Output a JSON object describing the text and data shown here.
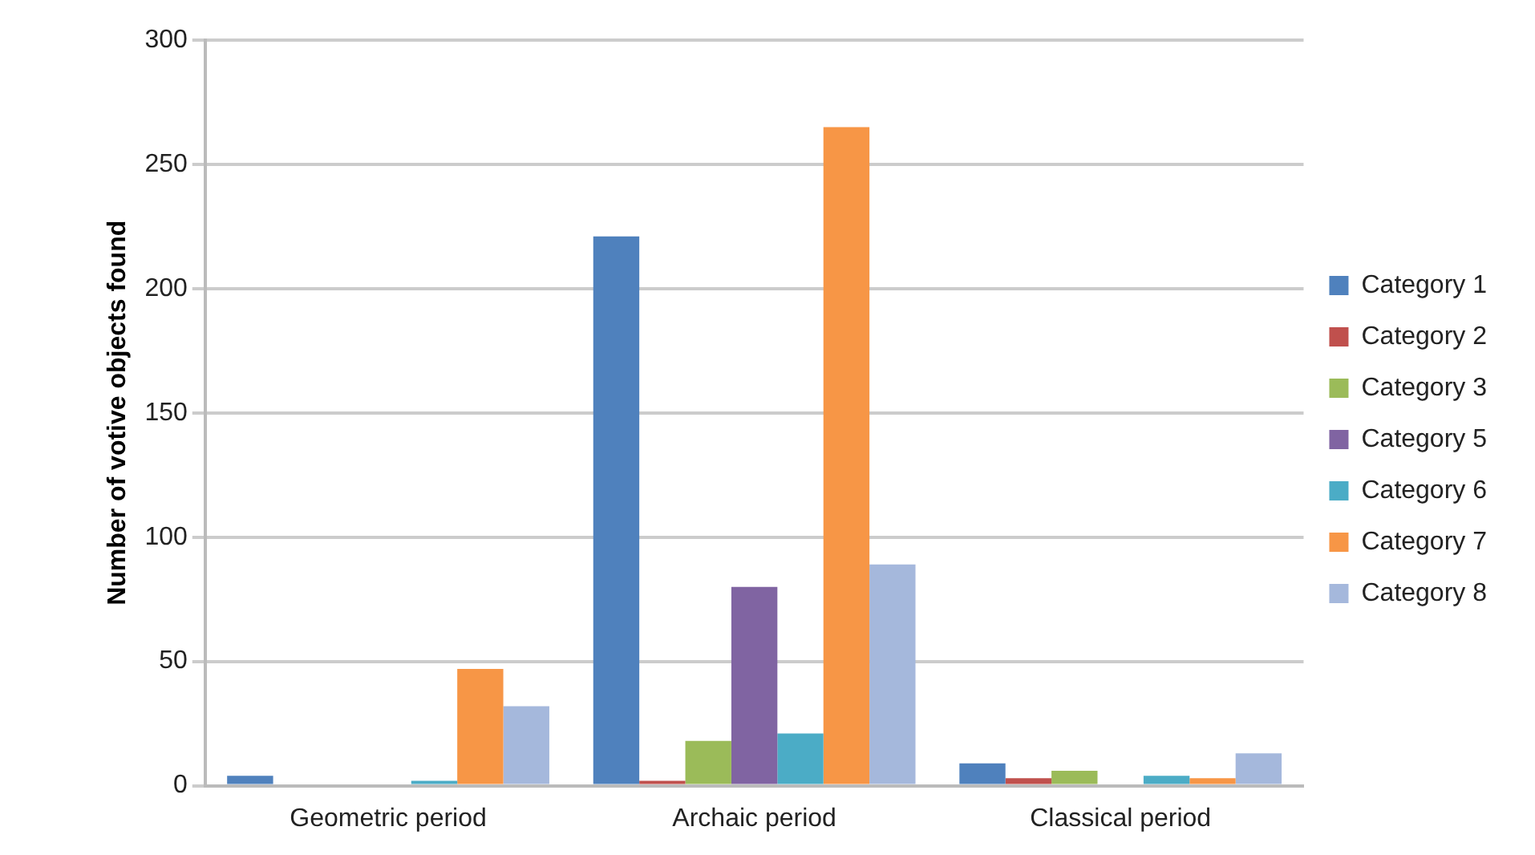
{
  "chart_data": {
    "type": "bar",
    "ylabel": "Number of votive objects found",
    "categories": [
      "Geometric period",
      "Archaic period",
      "Classical period"
    ],
    "series": [
      {
        "name": "Category 1",
        "color": "#4f81bd",
        "values": [
          4,
          221,
          9
        ]
      },
      {
        "name": "Category 2",
        "color": "#c0504d",
        "values": [
          0,
          2,
          3
        ]
      },
      {
        "name": "Category 3",
        "color": "#9bbb59",
        "values": [
          0,
          18,
          6
        ]
      },
      {
        "name": "Category 5",
        "color": "#8064a2",
        "values": [
          0,
          80,
          0
        ]
      },
      {
        "name": "Category 6",
        "color": "#4bacc6",
        "values": [
          2,
          21,
          4
        ]
      },
      {
        "name": "Category 7",
        "color": "#f79646",
        "values": [
          47,
          265,
          3
        ]
      },
      {
        "name": "Category 8",
        "color": "#a5b8dc",
        "values": [
          32,
          89,
          13
        ]
      }
    ],
    "ylim": [
      0,
      300
    ],
    "yticks": [
      0,
      50,
      100,
      150,
      200,
      250,
      300
    ],
    "grid": "y",
    "legend": "right"
  }
}
